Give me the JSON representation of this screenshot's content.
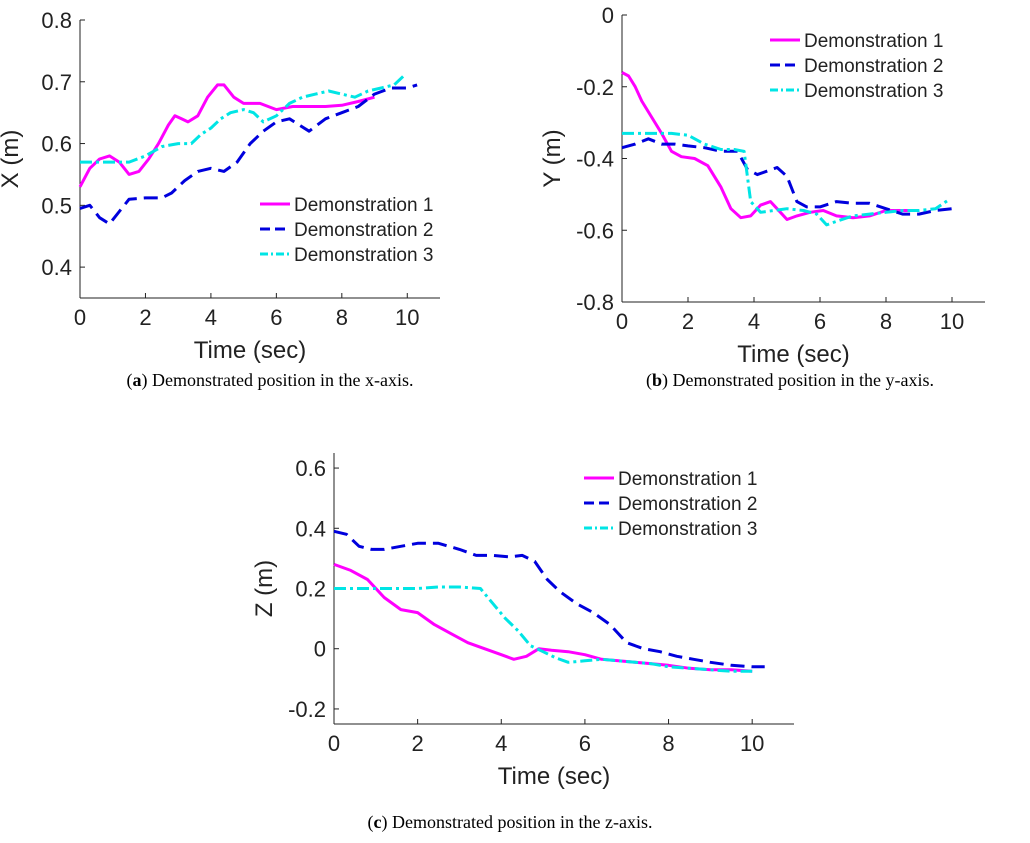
{
  "chart_data": [
    {
      "type": "line",
      "panel_label": "a",
      "caption": "Demonstrated position in the x-axis.",
      "xlabel": "Time (sec)",
      "ylabel": "X (m)",
      "xlim": [
        0,
        11
      ],
      "ylim": [
        0.35,
        0.8
      ],
      "xticks": [
        0,
        2,
        4,
        6,
        8,
        10
      ],
      "yticks": [
        0.4,
        0.5,
        0.6,
        0.7,
        0.8
      ],
      "xtick_labels": [
        "0",
        "2",
        "4",
        "6",
        "8",
        "10"
      ],
      "ytick_labels": [
        "0.4",
        "0.5",
        "0.6",
        "0.7",
        "0.8"
      ],
      "legend_position": "lower-right",
      "series": [
        {
          "name": "Demonstration 1",
          "color": "#ff00ff",
          "style": "solid",
          "x": [
            0,
            0.3,
            0.6,
            0.9,
            1.2,
            1.5,
            1.8,
            2.1,
            2.4,
            2.7,
            2.9,
            3.1,
            3.3,
            3.6,
            3.9,
            4.2,
            4.4,
            4.7,
            5.0,
            5.5,
            6.0,
            6.5,
            7.0,
            7.5,
            8.0,
            8.5,
            9.0
          ],
          "y": [
            0.53,
            0.56,
            0.575,
            0.58,
            0.57,
            0.55,
            0.555,
            0.575,
            0.6,
            0.63,
            0.645,
            0.64,
            0.635,
            0.645,
            0.675,
            0.695,
            0.695,
            0.675,
            0.665,
            0.665,
            0.655,
            0.66,
            0.66,
            0.66,
            0.662,
            0.668,
            0.675
          ]
        },
        {
          "name": "Demonstration 2",
          "color": "#0000dd",
          "style": "dash",
          "x": [
            0,
            0.3,
            0.6,
            0.9,
            1.2,
            1.5,
            2.0,
            2.5,
            2.8,
            3.2,
            3.6,
            4.0,
            4.4,
            4.8,
            5.2,
            5.6,
            6.0,
            6.4,
            6.7,
            7.0,
            7.5,
            8.0,
            8.5,
            9.0,
            9.5,
            10.0,
            10.3
          ],
          "y": [
            0.495,
            0.5,
            0.48,
            0.47,
            0.49,
            0.51,
            0.512,
            0.512,
            0.52,
            0.54,
            0.555,
            0.56,
            0.555,
            0.57,
            0.6,
            0.62,
            0.635,
            0.64,
            0.63,
            0.62,
            0.64,
            0.65,
            0.66,
            0.68,
            0.69,
            0.69,
            0.695
          ]
        },
        {
          "name": "Demonstration 3",
          "color": "#00e5e5",
          "style": "dashdot",
          "x": [
            0,
            0.5,
            1.0,
            1.5,
            2.0,
            2.5,
            3.0,
            3.4,
            3.7,
            4.0,
            4.3,
            4.6,
            5.0,
            5.3,
            5.6,
            6.0,
            6.4,
            6.8,
            7.2,
            7.6,
            8.0,
            8.4,
            8.8,
            9.2,
            9.6,
            9.9
          ],
          "y": [
            0.57,
            0.57,
            0.57,
            0.57,
            0.58,
            0.595,
            0.6,
            0.6,
            0.615,
            0.625,
            0.64,
            0.65,
            0.655,
            0.65,
            0.635,
            0.645,
            0.665,
            0.675,
            0.68,
            0.685,
            0.68,
            0.675,
            0.685,
            0.69,
            0.695,
            0.71
          ]
        }
      ]
    },
    {
      "type": "line",
      "panel_label": "b",
      "caption": "Demonstrated position in the y-axis.",
      "xlabel": "Time (sec)",
      "ylabel": "Y (m)",
      "xlim": [
        0,
        11
      ],
      "ylim": [
        -0.8,
        0
      ],
      "xticks": [
        0,
        2,
        4,
        6,
        8,
        10
      ],
      "yticks": [
        -0.8,
        -0.6,
        -0.4,
        -0.2,
        0
      ],
      "xtick_labels": [
        "0",
        "2",
        "4",
        "6",
        "8",
        "10"
      ],
      "ytick_labels": [
        "-0.8",
        "-0.6",
        "-0.4",
        "-0.2",
        "0"
      ],
      "legend_position": "top-right",
      "series": [
        {
          "name": "Demonstration 1",
          "color": "#ff00ff",
          "style": "solid",
          "x": [
            0,
            0.2,
            0.4,
            0.6,
            0.8,
            1.0,
            1.2,
            1.5,
            1.8,
            2.2,
            2.6,
            3.0,
            3.3,
            3.6,
            3.9,
            4.2,
            4.5,
            4.8,
            5.0,
            5.3,
            5.7,
            6.1,
            6.5,
            7.0,
            7.5,
            8.0,
            8.5,
            9.0
          ],
          "y": [
            -0.16,
            -0.17,
            -0.2,
            -0.24,
            -0.27,
            -0.3,
            -0.33,
            -0.38,
            -0.395,
            -0.4,
            -0.42,
            -0.48,
            -0.54,
            -0.565,
            -0.56,
            -0.53,
            -0.52,
            -0.55,
            -0.57,
            -0.56,
            -0.55,
            -0.545,
            -0.56,
            -0.565,
            -0.56,
            -0.545,
            -0.545,
            -0.545
          ]
        },
        {
          "name": "Demonstration 2",
          "color": "#0000dd",
          "style": "dash",
          "x": [
            0,
            0.4,
            0.8,
            1.2,
            1.6,
            2.0,
            2.5,
            3.0,
            3.5,
            3.8,
            4.1,
            4.4,
            4.7,
            5.0,
            5.3,
            5.6,
            6.0,
            6.5,
            7.0,
            7.5,
            8.0,
            8.5,
            9.0,
            9.5,
            10.0
          ],
          "y": [
            -0.37,
            -0.36,
            -0.345,
            -0.36,
            -0.36,
            -0.365,
            -0.37,
            -0.38,
            -0.38,
            -0.43,
            -0.445,
            -0.435,
            -0.425,
            -0.45,
            -0.52,
            -0.535,
            -0.535,
            -0.52,
            -0.525,
            -0.525,
            -0.54,
            -0.555,
            -0.555,
            -0.545,
            -0.54
          ]
        },
        {
          "name": "Demonstration 3",
          "color": "#00e5e5",
          "style": "dashdot",
          "x": [
            0,
            0.5,
            1.0,
            1.5,
            2.0,
            2.5,
            3.0,
            3.4,
            3.7,
            3.9,
            4.2,
            4.6,
            5.0,
            5.5,
            5.9,
            6.2,
            6.5,
            7.0,
            7.5,
            8.0,
            8.5,
            9.0,
            9.5,
            9.9
          ],
          "y": [
            -0.33,
            -0.33,
            -0.33,
            -0.33,
            -0.335,
            -0.36,
            -0.375,
            -0.375,
            -0.38,
            -0.52,
            -0.55,
            -0.545,
            -0.54,
            -0.545,
            -0.555,
            -0.585,
            -0.575,
            -0.56,
            -0.555,
            -0.55,
            -0.545,
            -0.545,
            -0.54,
            -0.515
          ]
        }
      ]
    },
    {
      "type": "line",
      "panel_label": "c",
      "caption": "Demonstrated position in the z-axis.",
      "xlabel": "Time (sec)",
      "ylabel": "Z (m)",
      "xlim": [
        0,
        11
      ],
      "ylim": [
        -0.25,
        0.65
      ],
      "xticks": [
        0,
        2,
        4,
        6,
        8,
        10
      ],
      "yticks": [
        -0.2,
        0,
        0.2,
        0.4,
        0.6
      ],
      "xtick_labels": [
        "0",
        "2",
        "4",
        "6",
        "8",
        "10"
      ],
      "ytick_labels": [
        "-0.2",
        "0",
        "0.2",
        "0.4",
        "0.6"
      ],
      "legend_position": "top-right",
      "series": [
        {
          "name": "Demonstration 1",
          "color": "#ff00ff",
          "style": "solid",
          "x": [
            0,
            0.4,
            0.8,
            1.2,
            1.6,
            2.0,
            2.4,
            2.8,
            3.2,
            3.6,
            4.0,
            4.3,
            4.6,
            4.9,
            5.2,
            5.6,
            6.0,
            6.4,
            6.8,
            7.2,
            7.6,
            8.0,
            8.5,
            9.0,
            9.5,
            10.0
          ],
          "y": [
            0.28,
            0.26,
            0.23,
            0.17,
            0.13,
            0.12,
            0.08,
            0.05,
            0.02,
            0.0,
            -0.02,
            -0.035,
            -0.025,
            0.0,
            -0.005,
            -0.01,
            -0.02,
            -0.035,
            -0.04,
            -0.045,
            -0.05,
            -0.055,
            -0.065,
            -0.07,
            -0.07,
            -0.075
          ]
        },
        {
          "name": "Demonstration 2",
          "color": "#0000dd",
          "style": "dash",
          "x": [
            0,
            0.3,
            0.6,
            0.9,
            1.2,
            1.6,
            2.0,
            2.5,
            3.0,
            3.4,
            3.8,
            4.2,
            4.5,
            4.8,
            5.1,
            5.4,
            5.8,
            6.2,
            6.6,
            7.0,
            7.4,
            7.8,
            8.2,
            8.6,
            9.0,
            9.5,
            10.0,
            10.3
          ],
          "y": [
            0.39,
            0.38,
            0.34,
            0.33,
            0.33,
            0.34,
            0.35,
            0.35,
            0.33,
            0.31,
            0.31,
            0.305,
            0.31,
            0.29,
            0.23,
            0.19,
            0.15,
            0.12,
            0.08,
            0.02,
            0.0,
            -0.01,
            -0.025,
            -0.035,
            -0.045,
            -0.055,
            -0.06,
            -0.06
          ]
        },
        {
          "name": "Demonstration 3",
          "color": "#00e5e5",
          "style": "dashdot",
          "x": [
            0,
            0.5,
            1.0,
            1.5,
            2.0,
            2.5,
            3.0,
            3.5,
            3.8,
            4.1,
            4.4,
            4.7,
            5.0,
            5.3,
            5.6,
            6.0,
            6.4,
            6.8,
            7.2,
            7.6,
            8.0,
            8.5,
            9.0,
            9.5,
            10.0
          ],
          "y": [
            0.2,
            0.2,
            0.2,
            0.2,
            0.2,
            0.205,
            0.205,
            0.2,
            0.15,
            0.1,
            0.06,
            0.01,
            -0.01,
            -0.03,
            -0.045,
            -0.04,
            -0.035,
            -0.04,
            -0.045,
            -0.05,
            -0.06,
            -0.065,
            -0.07,
            -0.075,
            -0.075
          ]
        }
      ]
    }
  ]
}
